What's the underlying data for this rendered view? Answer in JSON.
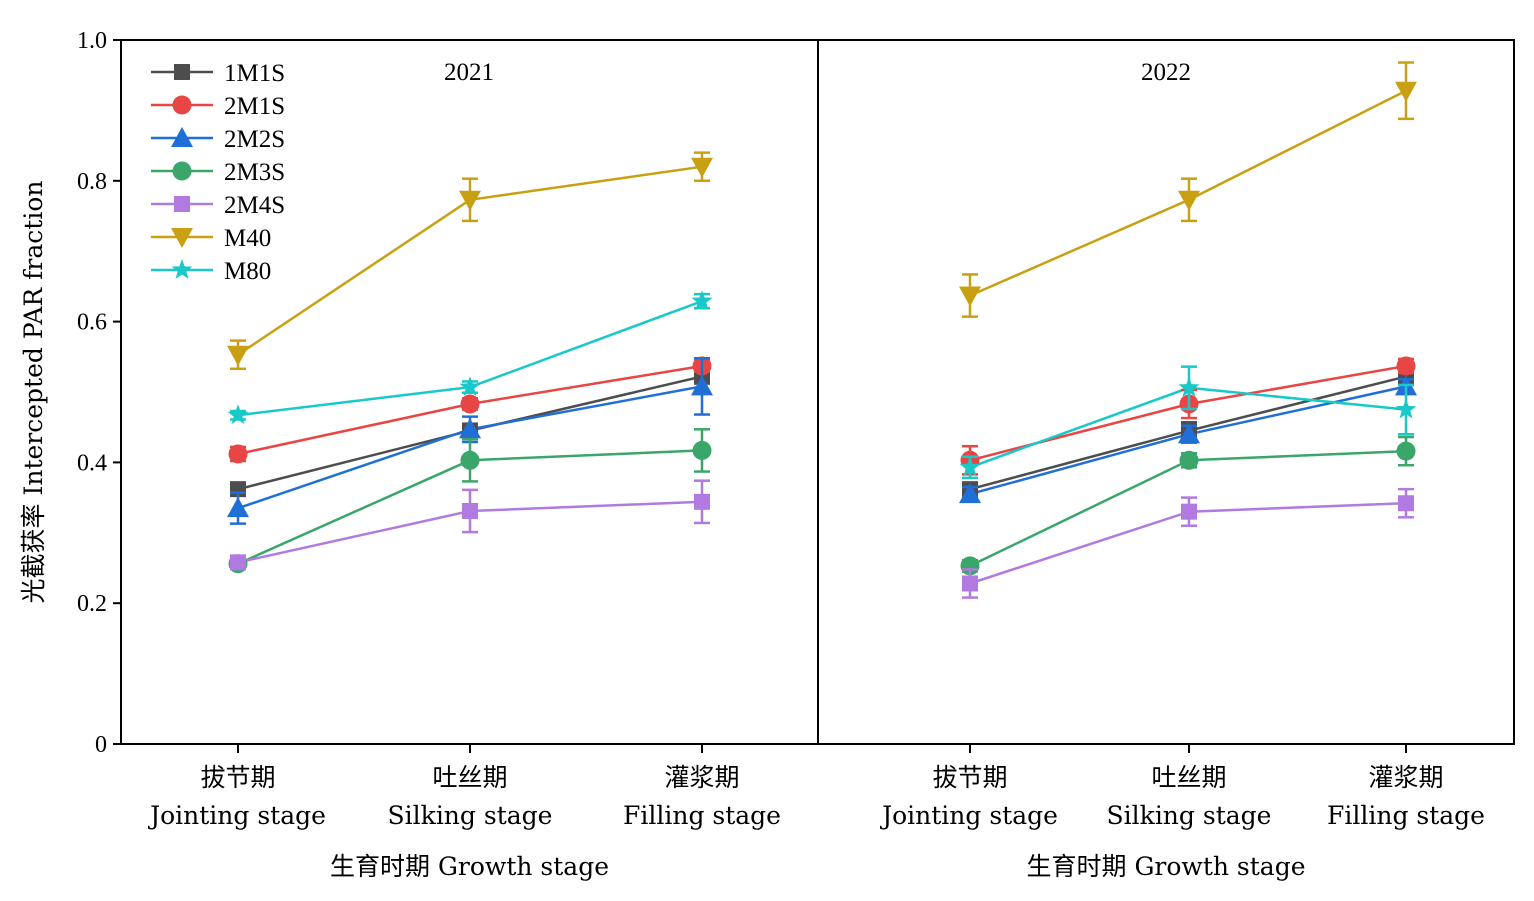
{
  "chart_data": {
    "type": "line",
    "ylabel": "光截获率 Intercepted PAR fraction",
    "ylim": [
      0,
      1.0
    ],
    "yticks": [
      "0",
      "0.2",
      "0.4",
      "0.6",
      "0.8",
      "1.0"
    ],
    "legend_position": "top-left",
    "categories": [
      {
        "cn": "拔节期",
        "en": "Jointing stage"
      },
      {
        "cn": "吐丝期",
        "en": "Silking stage"
      },
      {
        "cn": "灌浆期",
        "en": "Filling stage"
      }
    ],
    "legend": [
      {
        "name": "1M1S",
        "color": "#4d4d4d",
        "marker": "square"
      },
      {
        "name": "2M1S",
        "color": "#e84545",
        "marker": "circle"
      },
      {
        "name": "2M2S",
        "color": "#1f6fd6",
        "marker": "triangle-up"
      },
      {
        "name": "2M3S",
        "color": "#3aa66a",
        "marker": "circle"
      },
      {
        "name": "2M4S",
        "color": "#b07ae0",
        "marker": "square"
      },
      {
        "name": "M40",
        "color": "#c9a012",
        "marker": "triangle-down"
      },
      {
        "name": "M80",
        "color": "#19c8c8",
        "marker": "star"
      }
    ],
    "panels": [
      {
        "year": "2021",
        "xlabel": "生育时期 Growth stage",
        "series": [
          {
            "name": "1M1S",
            "values": [
              0.362,
              0.445,
              0.522
            ],
            "errors": [
              0.008,
              0.01,
              0.01
            ]
          },
          {
            "name": "2M1S",
            "values": [
              0.412,
              0.483,
              0.537
            ],
            "errors": [
              0.01,
              0.008,
              0.008
            ]
          },
          {
            "name": "2M2S",
            "values": [
              0.335,
              0.447,
              0.508
            ],
            "errors": [
              0.022,
              0.018,
              0.04
            ]
          },
          {
            "name": "2M3S",
            "values": [
              0.256,
              0.403,
              0.417
            ],
            "errors": [
              0.007,
              0.03,
              0.03
            ]
          },
          {
            "name": "2M4S",
            "values": [
              0.258,
              0.331,
              0.344
            ],
            "errors": [
              0.008,
              0.03,
              0.03
            ]
          },
          {
            "name": "M40",
            "values": [
              0.553,
              0.773,
              0.82
            ],
            "errors": [
              0.02,
              0.03,
              0.02
            ]
          },
          {
            "name": "M80",
            "values": [
              0.467,
              0.507,
              0.629
            ],
            "errors": [
              0.006,
              0.008,
              0.01
            ]
          }
        ]
      },
      {
        "year": "2022",
        "xlabel": "生育时期 Growth stage",
        "series": [
          {
            "name": "1M1S",
            "values": [
              0.362,
              0.445,
              0.522
            ],
            "errors": [
              0.008,
              0.012,
              0.012
            ]
          },
          {
            "name": "2M1S",
            "values": [
              0.403,
              0.483,
              0.537
            ],
            "errors": [
              0.02,
              0.02,
              0.01
            ]
          },
          {
            "name": "2M2S",
            "values": [
              0.355,
              0.44,
              0.508
            ],
            "errors": [
              0.01,
              0.012,
              0.01
            ]
          },
          {
            "name": "2M3S",
            "values": [
              0.253,
              0.403,
              0.416
            ],
            "errors": [
              0.008,
              0.01,
              0.02
            ]
          },
          {
            "name": "2M4S",
            "values": [
              0.228,
              0.33,
              0.342
            ],
            "errors": [
              0.02,
              0.02,
              0.02
            ]
          },
          {
            "name": "M40",
            "values": [
              0.637,
              0.773,
              0.928
            ],
            "errors": [
              0.03,
              0.03,
              0.04
            ]
          },
          {
            "name": "M80",
            "values": [
              0.393,
              0.506,
              0.475
            ],
            "errors": [
              0.015,
              0.03,
              0.035
            ]
          }
        ]
      }
    ]
  }
}
